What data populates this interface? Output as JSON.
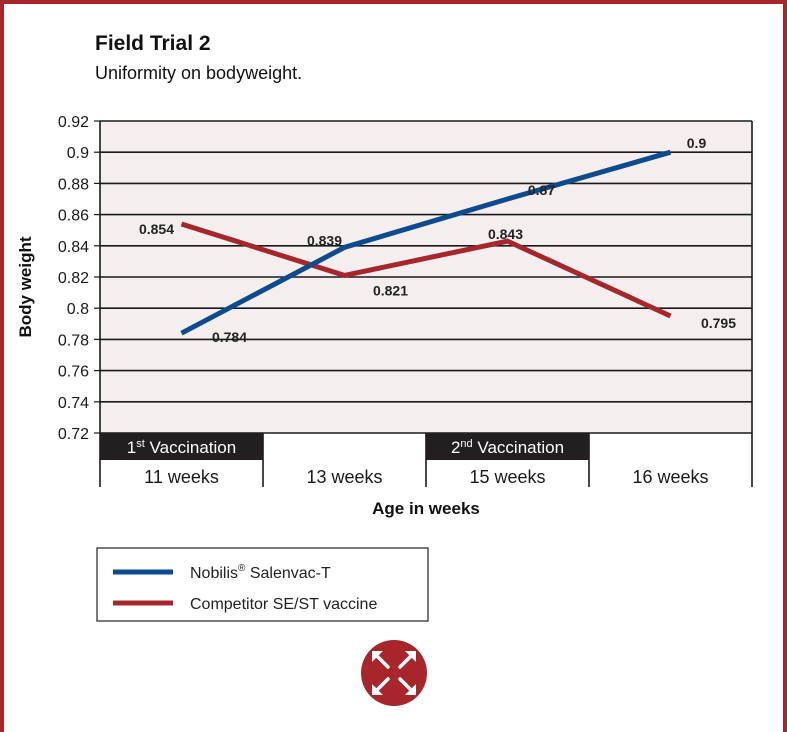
{
  "chart_data": {
    "type": "line",
    "title": "Field Trial 2",
    "subtitle": "Uniformity on bodyweight.",
    "xlabel": "Age in weeks",
    "ylabel": "Body weight",
    "ylim": [
      0.72,
      0.92
    ],
    "yticks": [
      "0.92",
      "0.9",
      "0.88",
      "0.86",
      "0.84",
      "0.82",
      "0.8",
      "0.78",
      "0.76",
      "0.74",
      "0.72"
    ],
    "categories": [
      "11 weeks",
      "13 weeks",
      "15 weeks",
      "16 weeks"
    ],
    "grid": true,
    "series": [
      {
        "name": "Nobilis",
        "name_sup": "®",
        "name_rest": " Salenvac-T",
        "color": "#0e4a8f",
        "values": [
          0.784,
          0.839,
          0.87,
          0.9
        ],
        "labels": [
          "0.784",
          "0.839",
          "0.87",
          "0.9"
        ]
      },
      {
        "name": "Competitor SE/ST vaccine",
        "color": "#a7262c",
        "values": [
          0.854,
          0.821,
          0.843,
          0.795
        ],
        "labels": [
          "0.854",
          "0.821",
          "0.843",
          "0.795"
        ]
      }
    ],
    "annotations": [
      {
        "category_index": 0,
        "ordinal": "1",
        "sup": "st",
        "text": " Vaccination"
      },
      {
        "category_index": 2,
        "ordinal": "2",
        "sup": "nd",
        "text": " Vaccination"
      }
    ],
    "legend_position": "bottom-left"
  },
  "colors": {
    "frame": "#a7262c",
    "plot_background": "#f5eeee",
    "annotation_background": "#231f20"
  },
  "logo": {
    "icon": "four-arrows-logo-icon"
  }
}
